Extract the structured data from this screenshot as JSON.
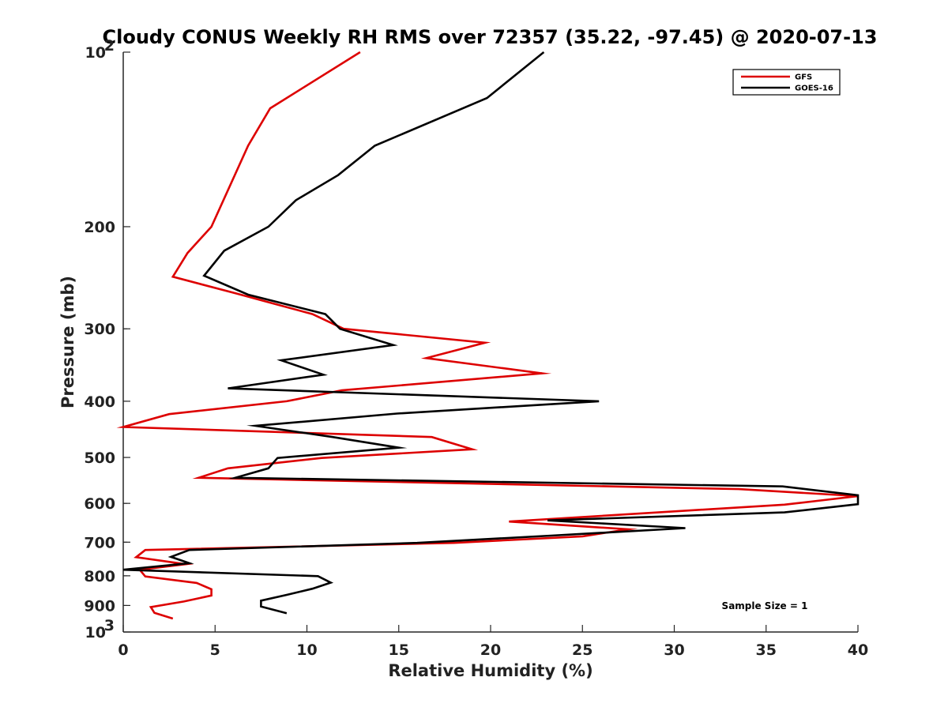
{
  "chart_data": {
    "type": "line",
    "title": "Cloudy CONUS Weekly RH RMS over 72357 (35.22, -97.45) @ 2020-07-13",
    "xlabel": "Relative Humidity (%)",
    "ylabel": "Pressure (mb)",
    "xlim": [
      0,
      40
    ],
    "ylim": [
      1000,
      100
    ],
    "y_scale": "log",
    "y_reversed": true,
    "x_ticks": [
      "0",
      "5",
      "10",
      "15",
      "20",
      "25",
      "30",
      "35",
      "40"
    ],
    "y_ticks": [
      {
        "value": 100,
        "base": "10",
        "exp": "2"
      },
      {
        "value": 200,
        "label": "200"
      },
      {
        "value": 300,
        "label": "300"
      },
      {
        "value": 400,
        "label": "400"
      },
      {
        "value": 500,
        "label": "500"
      },
      {
        "value": 600,
        "label": "600"
      },
      {
        "value": 700,
        "label": "700"
      },
      {
        "value": 800,
        "label": "800"
      },
      {
        "value": 900,
        "label": "900"
      },
      {
        "value": 1000,
        "base": "10",
        "exp": "3"
      }
    ],
    "grid": false,
    "legend_position": "top-right",
    "annotation": "Sample Size = 1",
    "series": [
      {
        "name": "GFS",
        "color": "#dd0000",
        "points": [
          [
            12.9,
            100
          ],
          [
            8,
            125
          ],
          [
            6.8,
            145
          ],
          [
            4.8,
            200
          ],
          [
            3.5,
            222
          ],
          [
            2.7,
            244
          ],
          [
            6.2,
            261
          ],
          [
            10.3,
            283
          ],
          [
            12,
            300
          ],
          [
            19.7,
            317
          ],
          [
            16.5,
            337
          ],
          [
            22.8,
            358
          ],
          [
            11.9,
            383
          ],
          [
            8.9,
            400
          ],
          [
            2.5,
            421
          ],
          [
            0,
            443
          ],
          [
            16.8,
            461
          ],
          [
            19,
            484
          ],
          [
            10.8,
            501
          ],
          [
            5.7,
            522
          ],
          [
            4.1,
            542
          ],
          [
            33.5,
            567
          ],
          [
            40,
            583
          ],
          [
            36,
            603
          ],
          [
            28,
            625
          ],
          [
            21,
            645
          ],
          [
            27.5,
            665
          ],
          [
            25,
            684
          ],
          [
            18,
            702
          ],
          [
            1.2,
            722
          ],
          [
            0.7,
            743
          ],
          [
            3.4,
            764
          ],
          [
            0.9,
            781
          ],
          [
            1.2,
            802
          ],
          [
            4,
            823
          ],
          [
            4.8,
            844
          ],
          [
            4.8,
            865
          ],
          [
            3.3,
            886
          ],
          [
            1.5,
            906
          ],
          [
            1.7,
            927
          ],
          [
            2.7,
            948
          ]
        ]
      },
      {
        "name": "GOES-16",
        "color": "#000000",
        "points": [
          [
            22.9,
            100
          ],
          [
            19.8,
            120
          ],
          [
            13.7,
            145
          ],
          [
            11.7,
            163
          ],
          [
            9.4,
            180
          ],
          [
            7.9,
            200
          ],
          [
            5.5,
            220
          ],
          [
            4.4,
            243
          ],
          [
            6.8,
            262
          ],
          [
            11,
            283
          ],
          [
            11.8,
            300
          ],
          [
            14.7,
            320
          ],
          [
            8.6,
            340
          ],
          [
            10.9,
            360
          ],
          [
            5.7,
            380
          ],
          [
            25.9,
            400
          ],
          [
            14.9,
            420
          ],
          [
            7.2,
            441
          ],
          [
            11.4,
            461
          ],
          [
            15,
            481
          ],
          [
            8.4,
            501
          ],
          [
            7.9,
            522
          ],
          [
            6.1,
            542
          ],
          [
            35.9,
            561
          ],
          [
            40,
            581
          ],
          [
            40,
            602
          ],
          [
            36,
            622
          ],
          [
            23.1,
            642
          ],
          [
            30.6,
            662
          ],
          [
            23.3,
            682
          ],
          [
            16,
            702
          ],
          [
            3.6,
            722
          ],
          [
            2.6,
            742
          ],
          [
            3.6,
            761
          ],
          [
            0,
            781
          ],
          [
            10.6,
            801
          ],
          [
            11.3,
            822
          ],
          [
            10.3,
            842
          ],
          [
            8.9,
            863
          ],
          [
            7.5,
            883
          ],
          [
            7.5,
            904
          ],
          [
            8.9,
            928
          ]
        ]
      }
    ]
  }
}
